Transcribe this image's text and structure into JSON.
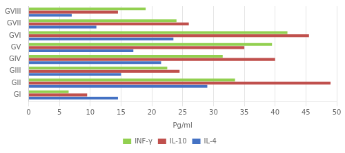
{
  "chart_data": {
    "type": "bar",
    "orientation": "horizontal",
    "categories": [
      "GI",
      "GII",
      "GIII",
      "GIV",
      "GV",
      "GVI",
      "GVII",
      "GVIII"
    ],
    "series": [
      {
        "name": "INF-γ",
        "color": "#92D050",
        "values": [
          6.5,
          33.5,
          22.5,
          31.5,
          39.5,
          42.0,
          24.0,
          19.0
        ]
      },
      {
        "name": "IL-10",
        "color": "#C0504D",
        "values": [
          9.5,
          49.0,
          24.5,
          40.0,
          35.0,
          45.5,
          26.0,
          14.5
        ]
      },
      {
        "name": "IL-4",
        "color": "#4472C4",
        "values": [
          14.5,
          29.0,
          15.0,
          21.5,
          17.0,
          23.5,
          11.0,
          7.0
        ]
      }
    ],
    "xlabel": "Pg/ml",
    "xlim": [
      0,
      50
    ],
    "xticks": [
      0,
      5,
      10,
      15,
      20,
      25,
      30,
      35,
      40,
      45,
      50
    ],
    "grid": true,
    "legend": "bottom"
  }
}
